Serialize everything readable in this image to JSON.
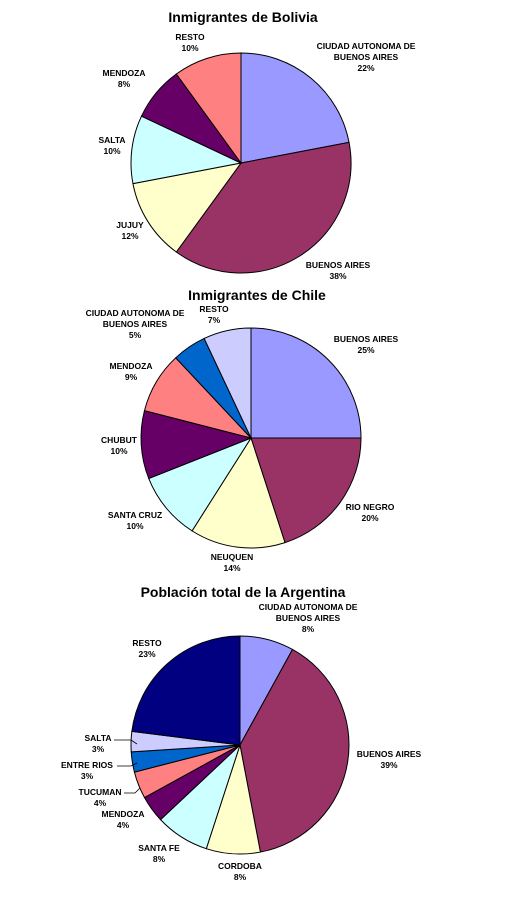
{
  "chart_data": [
    {
      "type": "pie",
      "title": "Inmigrantes de Bolivia",
      "slices": [
        {
          "label": "CIUDAD AUTONOMA DE BUENOS AIRES",
          "value": 22,
          "display": "22%",
          "color": "#9999ff"
        },
        {
          "label": "BUENOS AIRES",
          "value": 38,
          "display": "38%",
          "color": "#993366"
        },
        {
          "label": "JUJUY",
          "value": 12,
          "display": "12%",
          "color": "#ffffcc"
        },
        {
          "label": "SALTA",
          "value": 10,
          "display": "10%",
          "color": "#ccffff"
        },
        {
          "label": "MENDOZA",
          "value": 8,
          "display": "8%",
          "color": "#660066"
        },
        {
          "label": "RESTO",
          "value": 10,
          "display": "10%",
          "color": "#ff8080"
        }
      ]
    },
    {
      "type": "pie",
      "title": "Inmigrantes de Chile",
      "slices": [
        {
          "label": "BUENOS AIRES",
          "value": 25,
          "display": "25%",
          "color": "#9999ff"
        },
        {
          "label": "RIO NEGRO",
          "value": 20,
          "display": "20%",
          "color": "#993366"
        },
        {
          "label": "NEUQUEN",
          "value": 14,
          "display": "14%",
          "color": "#ffffcc"
        },
        {
          "label": "SANTA CRUZ",
          "value": 10,
          "display": "10%",
          "color": "#ccffff"
        },
        {
          "label": "CHUBUT",
          "value": 10,
          "display": "10%",
          "color": "#660066"
        },
        {
          "label": "MENDOZA",
          "value": 9,
          "display": "9%",
          "color": "#ff8080"
        },
        {
          "label": "CIUDAD AUTONOMA DE BUENOS AIRES",
          "value": 5,
          "display": "5%",
          "color": "#0066cc"
        },
        {
          "label": "RESTO",
          "value": 7,
          "display": "7%",
          "color": "#ccccff"
        }
      ]
    },
    {
      "type": "pie",
      "title": "Población total de la Argentina",
      "slices": [
        {
          "label": "CIUDAD AUTONOMA DE BUENOS AIRES",
          "value": 8,
          "display": "8%",
          "color": "#9999ff"
        },
        {
          "label": "BUENOS AIRES",
          "value": 39,
          "display": "39%",
          "color": "#993366"
        },
        {
          "label": "CORDOBA",
          "value": 8,
          "display": "8%",
          "color": "#ffffcc"
        },
        {
          "label": "SANTA FE",
          "value": 8,
          "display": "8%",
          "color": "#ccffff"
        },
        {
          "label": "MENDOZA",
          "value": 4,
          "display": "4%",
          "color": "#660066"
        },
        {
          "label": "TUCUMAN",
          "value": 4,
          "display": "4%",
          "color": "#ff8080"
        },
        {
          "label": "ENTRE RIOS",
          "value": 3,
          "display": "3%",
          "color": "#0066cc"
        },
        {
          "label": "SALTA",
          "value": 3,
          "display": "3%",
          "color": "#ccccff"
        },
        {
          "label": "RESTO",
          "value": 23,
          "display": "23%",
          "color": "#000080"
        }
      ]
    }
  ]
}
